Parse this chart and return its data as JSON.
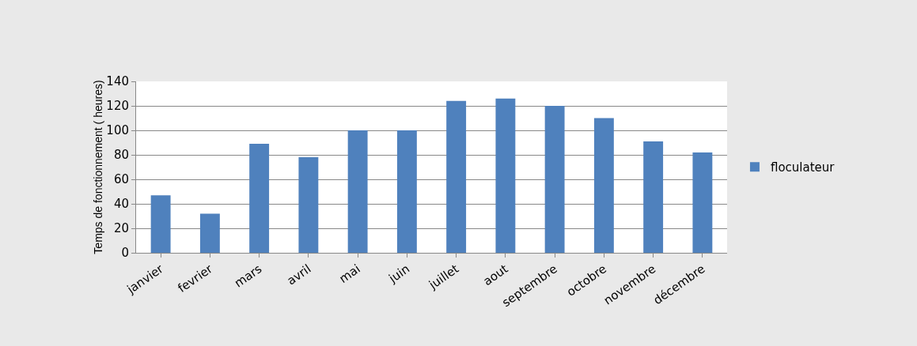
{
  "chart_data": {
    "type": "bar",
    "ylabel": "Temps de fonctionnement ( heures)",
    "categories": [
      "janvier",
      "fevrier",
      "mars",
      "avril",
      "mai",
      "juin",
      "juillet",
      "aout",
      "septembre",
      "octobre",
      "novembre",
      "décembre"
    ],
    "series": [
      {
        "name": "floculateur",
        "color": "#4f81bd",
        "values": [
          47,
          32,
          89,
          78,
          100,
          100,
          124,
          126,
          120,
          110,
          91,
          82
        ]
      }
    ],
    "ylim": [
      0,
      140
    ],
    "yticks": [
      0,
      20,
      40,
      60,
      80,
      100,
      120,
      140
    ],
    "grid": "y",
    "legend": "right"
  }
}
